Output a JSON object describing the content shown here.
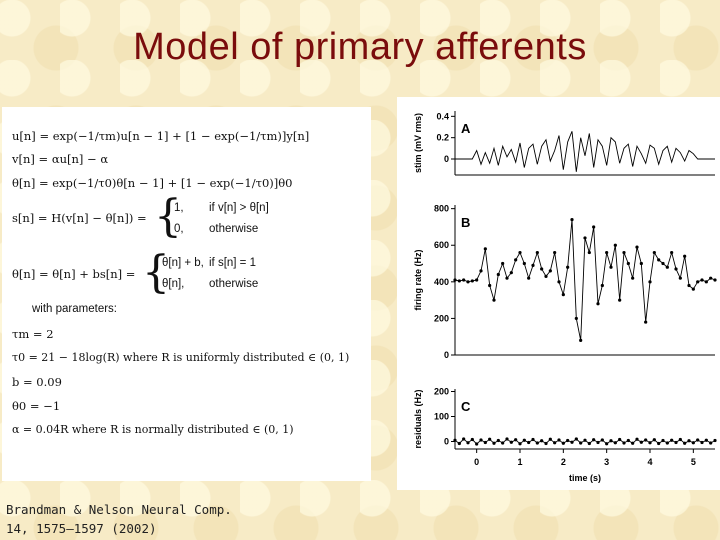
{
  "slide": {
    "title": "Model of primary afferents",
    "citation_line1": "Brandman & Nelson Neural Comp.",
    "citation_line2": "14, 1575–1597 (2002)"
  },
  "equations": {
    "eq1": "u[n] = exp(−1/τm)u[n − 1] + [1 − exp(−1/τm)]y[n]",
    "eq2": "v[n] = αu[n] − α",
    "eq3": "θ[n] = exp(−1/τ0)θ[n − 1] + [1 − exp(−1/τ0)]θ0",
    "eq4_lhs": "s[n] = H(v[n] − θ[n]) =",
    "eq4_case1_val": "1,",
    "eq4_case1_cond": "if v[n] > θ[n]",
    "eq4_case2_val": "0,",
    "eq4_case2_cond": "otherwise",
    "eq5_lhs": "θ[n] = θ[n] + bs[n] =",
    "eq5_case1_val": "θ[n] + b,",
    "eq5_case1_cond": "if s[n] = 1",
    "eq5_case2_val": "θ[n],",
    "eq5_case2_cond": "otherwise",
    "with_parameters": "with parameters:",
    "p1": "τm = 2",
    "p2": "τ0 = 21 − 18log(R) where R is uniformly distributed ∈ (0, 1)",
    "p3": "b = 0.09",
    "p4": "θ0 = −1",
    "p5": "α = 0.04R where R is normally distributed ∈ (0, 1)"
  },
  "chart_data": [
    {
      "type": "line",
      "panel_label": "A",
      "ylabel": "stim (mV rms)",
      "ytick_labels": [
        "0.4",
        "0.2",
        "0"
      ],
      "yticks": [
        0.4,
        0.2,
        0
      ],
      "ylim": [
        -0.15,
        0.45
      ],
      "xlim": [
        -0.5,
        5.5
      ],
      "x": [
        -0.5,
        -0.3,
        -0.1,
        0.0,
        0.1,
        0.2,
        0.3,
        0.4,
        0.5,
        0.6,
        0.7,
        0.8,
        0.9,
        1.0,
        1.1,
        1.2,
        1.3,
        1.4,
        1.5,
        1.6,
        1.7,
        1.8,
        1.9,
        2.0,
        2.1,
        2.2,
        2.3,
        2.4,
        2.5,
        2.6,
        2.7,
        2.8,
        2.9,
        3.0,
        3.1,
        3.2,
        3.3,
        3.4,
        3.5,
        3.6,
        3.7,
        3.8,
        3.9,
        4.0,
        4.1,
        4.2,
        4.3,
        4.4,
        4.5,
        4.6,
        4.7,
        4.8,
        4.9,
        5.0,
        5.1,
        5.3,
        5.5
      ],
      "values": [
        0,
        0,
        0,
        0.08,
        -0.05,
        0.06,
        -0.04,
        0.1,
        -0.06,
        0.12,
        0.02,
        0.09,
        -0.03,
        0.15,
        -0.08,
        0.1,
        0.14,
        -0.05,
        0.12,
        0.18,
        -0.02,
        0.08,
        0.22,
        -0.1,
        0.16,
        0.26,
        -0.12,
        0.2,
        0.03,
        0.24,
        -0.08,
        0.18,
        0.12,
        -0.06,
        0.2,
        0.16,
        -0.04,
        0.1,
        0.14,
        -0.07,
        0.12,
        0.05,
        -0.04,
        0.13,
        0.1,
        -0.05,
        0.08,
        0.12,
        -0.03,
        0.1,
        0.06,
        -0.02,
        0.08,
        0.05,
        0,
        0,
        0
      ]
    },
    {
      "type": "scatter",
      "panel_label": "B",
      "ylabel": "firing rate (Hz)",
      "ytick_labels": [
        "800",
        "600",
        "400",
        "200",
        "0"
      ],
      "yticks": [
        800,
        600,
        400,
        200,
        0
      ],
      "ylim": [
        0,
        820
      ],
      "xlim": [
        -0.5,
        5.5
      ],
      "x": [
        -0.5,
        -0.4,
        -0.3,
        -0.2,
        -0.1,
        0.0,
        0.1,
        0.2,
        0.3,
        0.4,
        0.5,
        0.6,
        0.7,
        0.8,
        0.9,
        1.0,
        1.1,
        1.2,
        1.3,
        1.4,
        1.5,
        1.6,
        1.7,
        1.8,
        1.9,
        2.0,
        2.1,
        2.2,
        2.3,
        2.4,
        2.5,
        2.6,
        2.7,
        2.8,
        2.9,
        3.0,
        3.1,
        3.2,
        3.3,
        3.4,
        3.5,
        3.6,
        3.7,
        3.8,
        3.9,
        4.0,
        4.1,
        4.2,
        4.3,
        4.4,
        4.5,
        4.6,
        4.7,
        4.8,
        4.9,
        5.0,
        5.1,
        5.2,
        5.3,
        5.4,
        5.5
      ],
      "values": [
        410,
        405,
        410,
        400,
        405,
        410,
        460,
        580,
        380,
        300,
        440,
        500,
        420,
        450,
        520,
        560,
        500,
        420,
        490,
        560,
        470,
        430,
        460,
        560,
        400,
        330,
        480,
        740,
        200,
        80,
        640,
        560,
        700,
        280,
        380,
        560,
        480,
        600,
        300,
        560,
        500,
        420,
        590,
        500,
        180,
        400,
        560,
        520,
        500,
        480,
        560,
        470,
        420,
        540,
        380,
        360,
        400,
        410,
        400,
        420,
        410
      ]
    },
    {
      "type": "scatter",
      "panel_label": "C",
      "ylabel": "residuals (Hz)",
      "ytick_labels": [
        "200",
        "100",
        "0"
      ],
      "yticks": [
        200,
        100,
        0
      ],
      "ylim": [
        -30,
        210
      ],
      "xlim": [
        -0.5,
        5.5
      ],
      "xlabel": "time (s)",
      "xtick_labels": [
        "0",
        "1",
        "2",
        "3",
        "4",
        "5"
      ],
      "xticks": [
        0,
        1,
        2,
        3,
        4,
        5
      ],
      "x": [
        -0.5,
        -0.4,
        -0.3,
        -0.2,
        -0.1,
        0.0,
        0.1,
        0.2,
        0.3,
        0.4,
        0.5,
        0.6,
        0.7,
        0.8,
        0.9,
        1.0,
        1.1,
        1.2,
        1.3,
        1.4,
        1.5,
        1.6,
        1.7,
        1.8,
        1.9,
        2.0,
        2.1,
        2.2,
        2.3,
        2.4,
        2.5,
        2.6,
        2.7,
        2.8,
        2.9,
        3.0,
        3.1,
        3.2,
        3.3,
        3.4,
        3.5,
        3.6,
        3.7,
        3.8,
        3.9,
        4.0,
        4.1,
        4.2,
        4.3,
        4.4,
        4.5,
        4.6,
        4.7,
        4.8,
        4.9,
        5.0,
        5.1,
        5.2,
        5.3,
        5.4,
        5.5
      ],
      "values": [
        5,
        -8,
        10,
        -5,
        8,
        -10,
        6,
        -4,
        9,
        -7,
        4,
        -6,
        10,
        -3,
        7,
        -9,
        5,
        -4,
        8,
        -6,
        3,
        -8,
        9,
        -5,
        6,
        -7,
        4,
        -3,
        10,
        -6,
        5,
        -8,
        7,
        -4,
        6,
        -9,
        3,
        -5,
        8,
        -6,
        4,
        -7,
        9,
        -3,
        6,
        -5,
        7,
        -8,
        4,
        -6,
        5,
        -4,
        8,
        -7,
        3,
        -5,
        6,
        -4,
        5,
        -6,
        4
      ]
    }
  ]
}
